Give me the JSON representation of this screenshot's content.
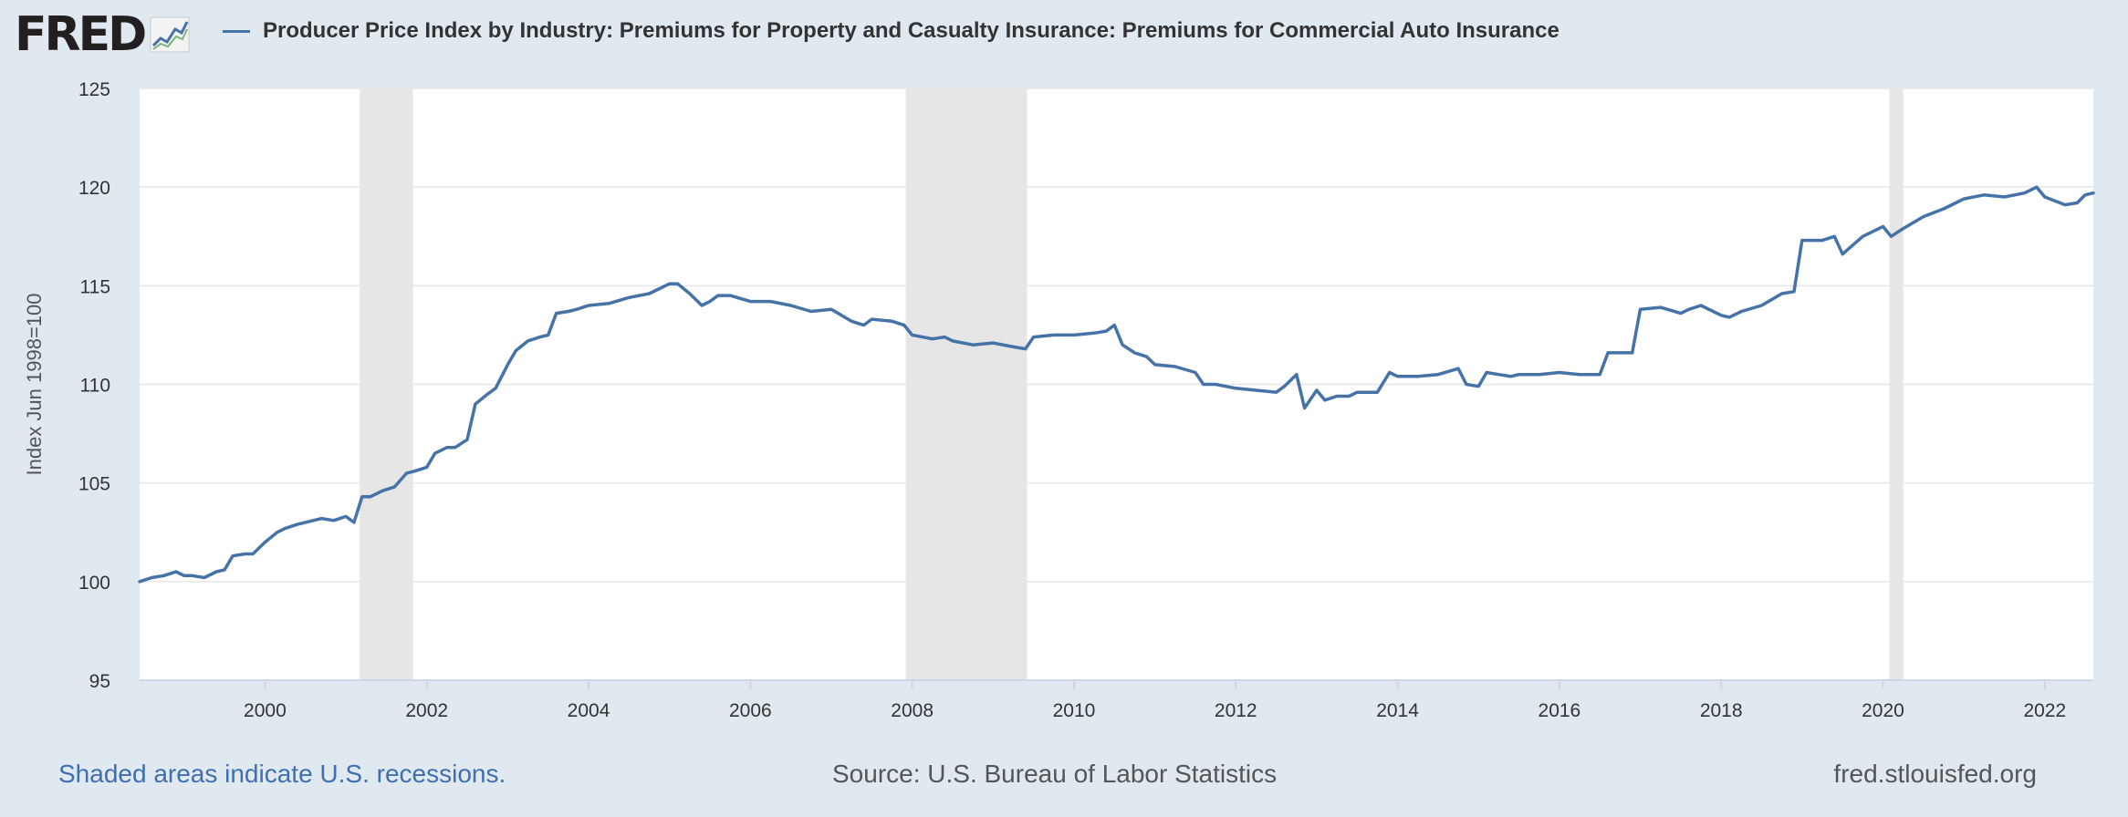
{
  "brand": {
    "logo_text": "FRED",
    "logo_icon": "fred-graph-icon"
  },
  "footer": {
    "recession_note": "Shaded areas indicate U.S. recessions.",
    "source": "Source: U.S. Bureau of Labor Statistics",
    "site": "fred.stlouisfed.org"
  },
  "colors": {
    "page_background": "#e1e9f0",
    "plot_background": "#ffffff",
    "series_line": "#4572a7",
    "recession_shade": "#e6e6e6",
    "footnote_link": "#3f6fb0"
  },
  "chart_data": {
    "type": "line",
    "title": "",
    "ylabel": "Index Jun 1998=100",
    "xlabel": "",
    "ylim": [
      95,
      125
    ],
    "xlim": [
      1998.45,
      2022.6
    ],
    "yticks": [
      95,
      100,
      105,
      110,
      115,
      120,
      125
    ],
    "xticks": [
      2000,
      2002,
      2004,
      2006,
      2008,
      2010,
      2012,
      2014,
      2016,
      2018,
      2020,
      2022
    ],
    "grid": true,
    "legend_position": "top",
    "recessions": [
      {
        "start": 2001.17,
        "end": 2001.83
      },
      {
        "start": 2007.92,
        "end": 2009.42
      },
      {
        "start": 2020.08,
        "end": 2020.25
      }
    ],
    "series": [
      {
        "name": "Producer Price Index by Industry: Premiums for Property and Casualty Insurance: Premiums for Commercial Auto Insurance",
        "x": [
          1998.45,
          1998.6,
          1998.75,
          1998.9,
          1999.0,
          1999.1,
          1999.25,
          1999.4,
          1999.5,
          1999.6,
          1999.75,
          1999.85,
          2000.0,
          2000.15,
          2000.25,
          2000.4,
          2000.5,
          2000.7,
          2000.85,
          2001.0,
          2001.1,
          2001.2,
          2001.3,
          2001.45,
          2001.6,
          2001.75,
          2001.85,
          2002.0,
          2002.1,
          2002.25,
          2002.35,
          2002.5,
          2002.6,
          2002.75,
          2002.85,
          2003.0,
          2003.1,
          2003.25,
          2003.4,
          2003.5,
          2003.6,
          2003.75,
          2003.85,
          2004.0,
          2004.25,
          2004.5,
          2004.75,
          2005.0,
          2005.1,
          2005.25,
          2005.4,
          2005.5,
          2005.6,
          2005.75,
          2006.0,
          2006.25,
          2006.5,
          2006.75,
          2007.0,
          2007.25,
          2007.4,
          2007.5,
          2007.75,
          2007.9,
          2008.0,
          2008.25,
          2008.4,
          2008.5,
          2008.75,
          2009.0,
          2009.25,
          2009.4,
          2009.5,
          2009.75,
          2010.0,
          2010.25,
          2010.4,
          2010.5,
          2010.6,
          2010.75,
          2010.9,
          2011.0,
          2011.25,
          2011.5,
          2011.6,
          2011.75,
          2012.0,
          2012.25,
          2012.5,
          2012.6,
          2012.75,
          2012.85,
          2013.0,
          2013.1,
          2013.25,
          2013.4,
          2013.5,
          2013.75,
          2013.9,
          2014.0,
          2014.25,
          2014.5,
          2014.75,
          2014.85,
          2015.0,
          2015.1,
          2015.25,
          2015.4,
          2015.5,
          2015.75,
          2016.0,
          2016.25,
          2016.5,
          2016.6,
          2016.75,
          2016.9,
          2017.0,
          2017.25,
          2017.5,
          2017.6,
          2017.75,
          2018.0,
          2018.1,
          2018.25,
          2018.5,
          2018.75,
          2018.9,
          2019.0,
          2019.1,
          2019.25,
          2019.4,
          2019.5,
          2019.75,
          2019.9,
          2020.0,
          2020.1,
          2020.25,
          2020.5,
          2020.75,
          2020.9,
          2021.0,
          2021.25,
          2021.5,
          2021.75,
          2021.9,
          2022.0,
          2022.25,
          2022.4,
          2022.5,
          2022.6
        ],
        "values": [
          100.0,
          100.2,
          100.3,
          100.5,
          100.3,
          100.3,
          100.2,
          100.5,
          100.6,
          101.3,
          101.4,
          101.4,
          102.0,
          102.5,
          102.7,
          102.9,
          103.0,
          103.2,
          103.1,
          103.3,
          103.0,
          104.3,
          104.3,
          104.6,
          104.8,
          105.5,
          105.6,
          105.8,
          106.5,
          106.8,
          106.8,
          107.2,
          109.0,
          109.5,
          109.8,
          111.0,
          111.7,
          112.2,
          112.4,
          112.5,
          113.6,
          113.7,
          113.8,
          114.0,
          114.1,
          114.4,
          114.6,
          115.1,
          115.1,
          114.6,
          114.0,
          114.2,
          114.5,
          114.5,
          114.2,
          114.2,
          114.0,
          113.7,
          113.8,
          113.2,
          113.0,
          113.3,
          113.2,
          113.0,
          112.5,
          112.3,
          112.4,
          112.2,
          112.0,
          112.1,
          111.9,
          111.8,
          112.4,
          112.5,
          112.5,
          112.6,
          112.7,
          113.0,
          112.0,
          111.6,
          111.4,
          111.0,
          110.9,
          110.6,
          110.0,
          110.0,
          109.8,
          109.7,
          109.6,
          109.9,
          110.5,
          108.8,
          109.7,
          109.2,
          109.4,
          109.4,
          109.6,
          109.6,
          110.6,
          110.4,
          110.4,
          110.5,
          110.8,
          110.0,
          109.9,
          110.6,
          110.5,
          110.4,
          110.5,
          110.5,
          110.6,
          110.5,
          110.5,
          111.6,
          111.6,
          111.6,
          113.8,
          113.9,
          113.6,
          113.8,
          114.0,
          113.5,
          113.4,
          113.7,
          114.0,
          114.6,
          114.7,
          117.3,
          117.3,
          117.3,
          117.5,
          116.6,
          117.5,
          117.8,
          118.0,
          117.5,
          117.9,
          118.5,
          118.9,
          119.2,
          119.4,
          119.6,
          119.5,
          119.7,
          120.0,
          119.5,
          119.1,
          119.2,
          119.6,
          119.7
        ]
      }
    ]
  }
}
